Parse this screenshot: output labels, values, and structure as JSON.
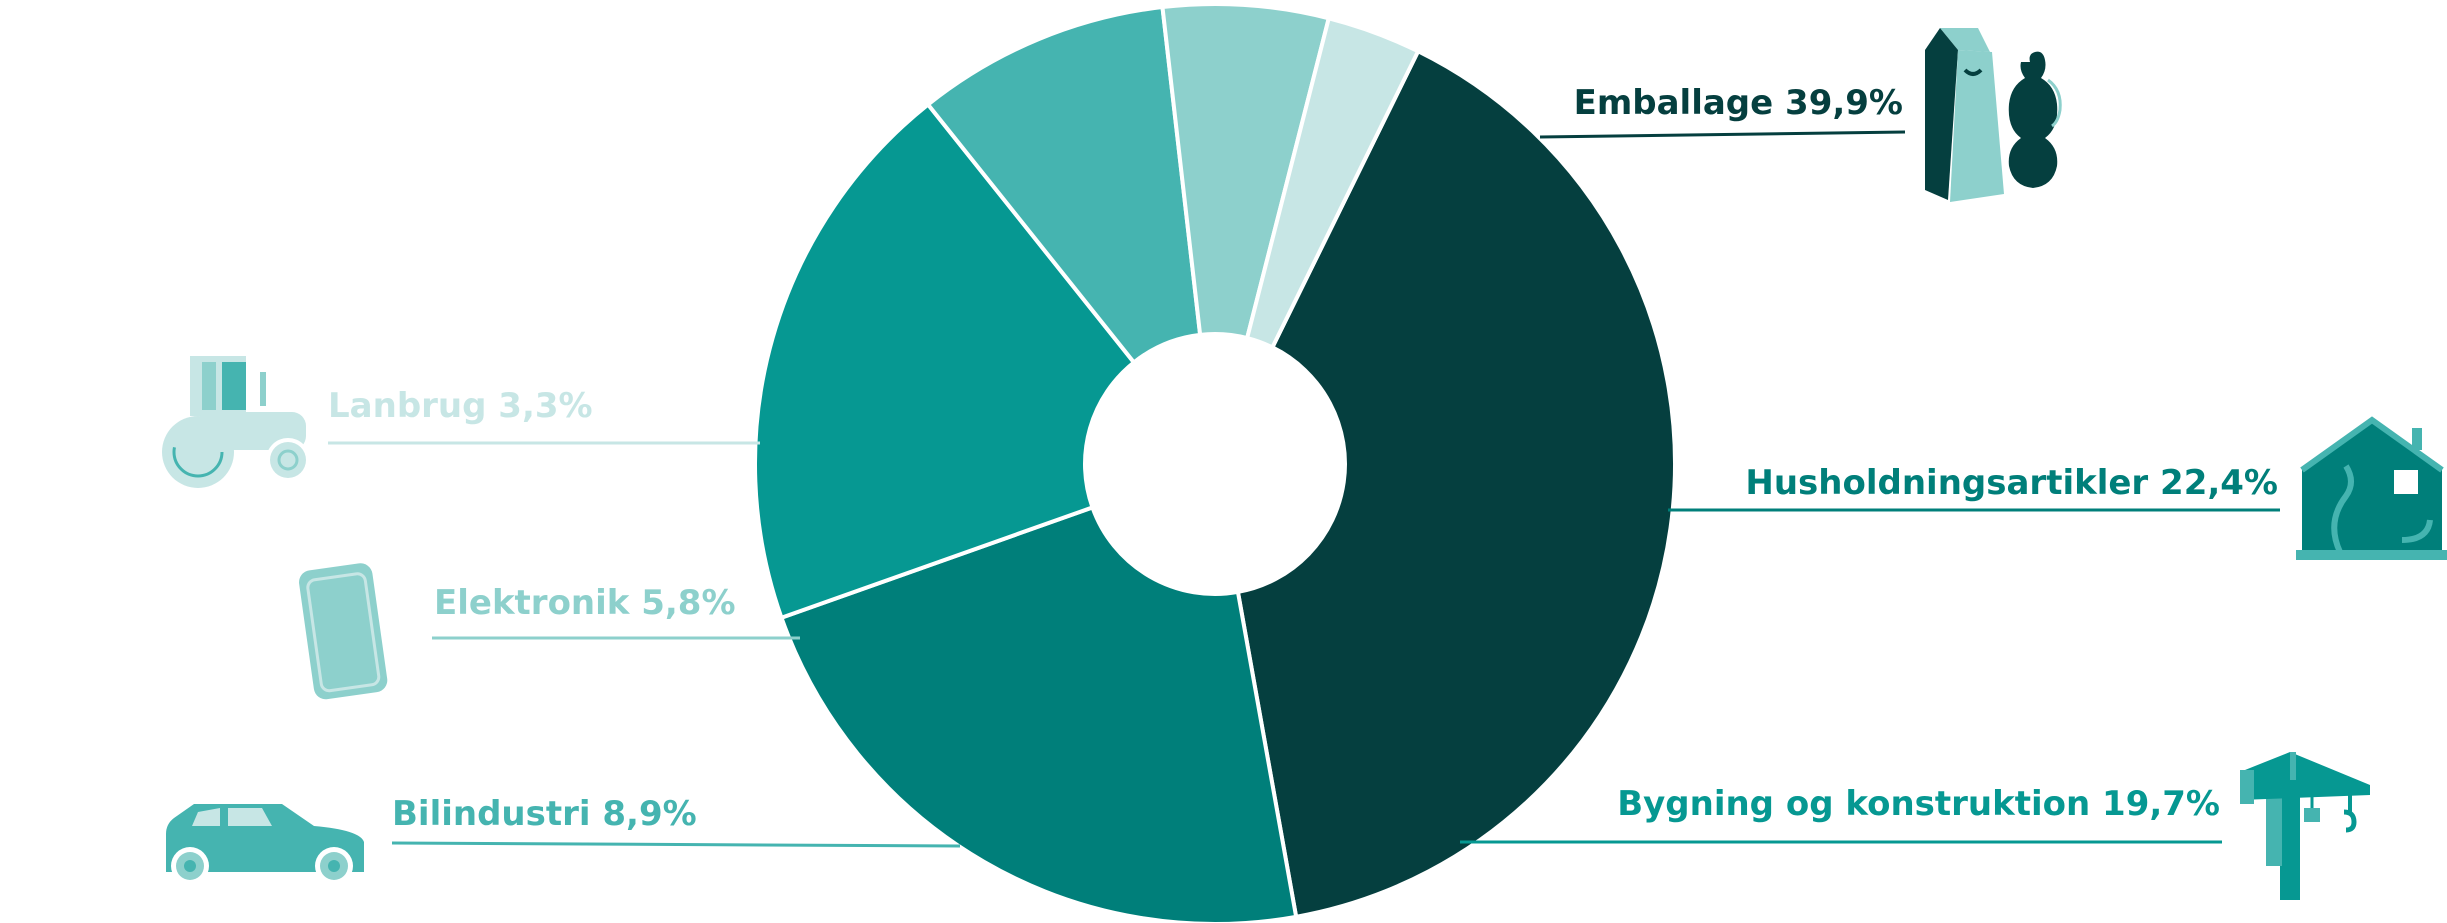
{
  "chart_data": {
    "type": "pie",
    "style": "donut",
    "slices": [
      {
        "label": "Emballage",
        "value": 39.9,
        "text": "Emballage 39,9%",
        "color": "#053f3f",
        "icon": "packaging-icon"
      },
      {
        "label": "Husholdningsartikler",
        "value": 22.4,
        "text": "Husholdningsartikler 22,4%",
        "color": "#007f7a",
        "icon": "house-icon"
      },
      {
        "label": "Bygning og konstruktion",
        "value": 19.7,
        "text": "Bygning og konstruktion 19,7%",
        "color": "#069892",
        "icon": "crane-icon"
      },
      {
        "label": "Bilindustri",
        "value": 8.9,
        "text": "Bilindustri 8,9%",
        "color": "#45b4b0",
        "icon": "car-icon"
      },
      {
        "label": "Elektronik",
        "value": 5.8,
        "text": "Elektronik 5,8%",
        "color": "#8dd0cc",
        "icon": "phone-icon"
      },
      {
        "label": "Lanbrug",
        "value": 3.3,
        "text": "Lanbrug 3,3%",
        "color": "#c7e6e5",
        "icon": "tractor-icon"
      }
    ]
  }
}
